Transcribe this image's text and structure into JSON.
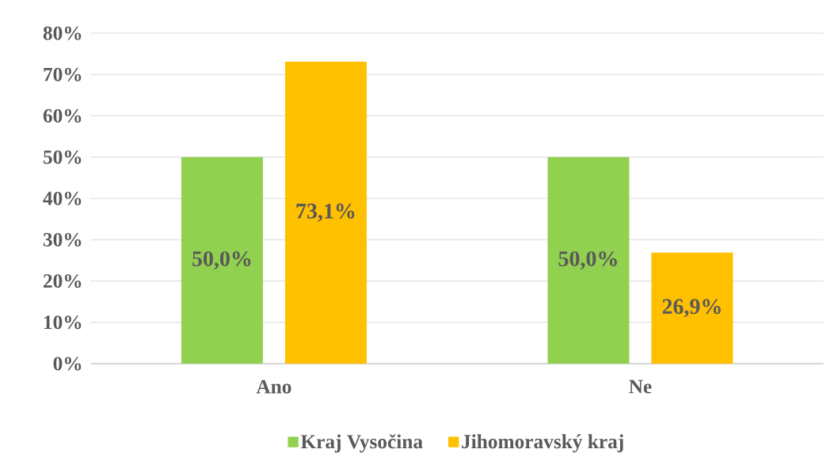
{
  "chart_data": {
    "type": "bar",
    "categories": [
      "Ano",
      "Ne"
    ],
    "series": [
      {
        "name": "Kraj Vysočina",
        "color": "#92d050",
        "values": [
          50.0,
          50.0
        ],
        "value_labels": [
          "50,0%",
          "50,0%"
        ]
      },
      {
        "name": "Jihomoravský kraj",
        "color": "#ffc000",
        "values": [
          73.1,
          26.9
        ],
        "value_labels": [
          "73,1%",
          "26,9%"
        ]
      }
    ],
    "ylim": [
      0,
      80
    ],
    "yticks": [
      {
        "value": 0,
        "label": "0%"
      },
      {
        "value": 10,
        "label": "10%"
      },
      {
        "value": 20,
        "label": "20%"
      },
      {
        "value": 30,
        "label": "30%"
      },
      {
        "value": 40,
        "label": "40%"
      },
      {
        "value": 50,
        "label": "50%"
      },
      {
        "value": 60,
        "label": "60%"
      },
      {
        "value": 70,
        "label": "70%"
      },
      {
        "value": 80,
        "label": "80%"
      }
    ],
    "grid": "y",
    "legend": "bottom"
  }
}
